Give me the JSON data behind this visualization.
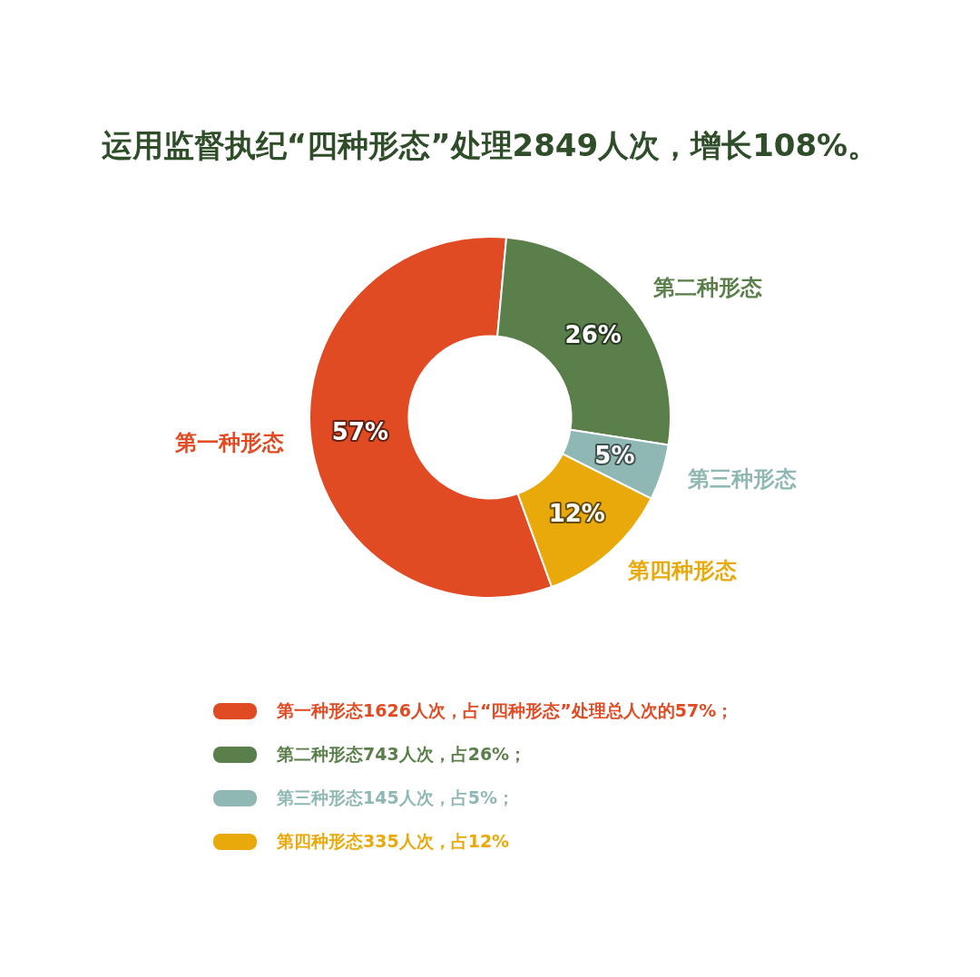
{
  "chart_data": {
    "type": "donut",
    "title": "运用监督执纪“四种形态”处理2849人次，增长108%。",
    "categories": [
      "第一种形态",
      "第二种形态",
      "第三种形态",
      "第四种形态"
    ],
    "values": [
      57,
      26,
      5,
      12
    ],
    "value_labels": [
      "57%",
      "26%",
      "5%",
      "12%"
    ],
    "colors": [
      "#e04b24",
      "#5a7f4a",
      "#8fb8b4",
      "#e9a90b"
    ],
    "legend": false,
    "annotations": [
      "第一种形态1626人次，占“四种形态”处理总人次的57%；",
      "第二种形态743人次，占26%；",
      "第三种形态145人次，占5%；",
      "第四种形态335人次，占12%"
    ]
  }
}
